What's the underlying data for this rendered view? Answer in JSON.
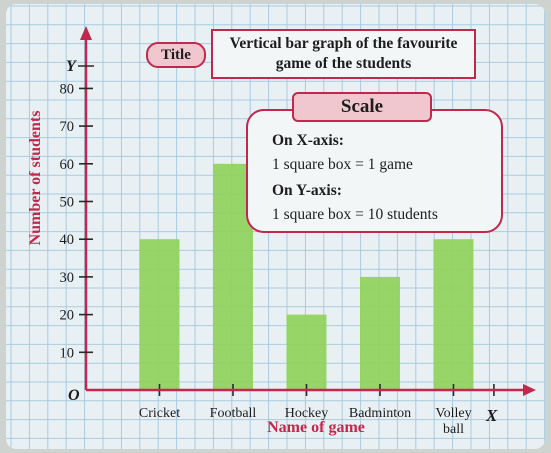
{
  "chart_data": {
    "type": "bar",
    "categories": [
      "Cricket",
      "Football",
      "Hockey",
      "Badminton",
      "Volley ball"
    ],
    "values": [
      40,
      60,
      20,
      30,
      40
    ],
    "title": "Vertical bar graph of the favourite game of the students",
    "title_tag": "Title",
    "xlabel": "Name of game",
    "ylabel": "Number of students",
    "x_axis_letter": "X",
    "y_axis_letter": "Y",
    "origin_label": "O",
    "yticks": [
      10,
      20,
      30,
      40,
      50,
      60,
      70,
      80
    ],
    "ylim": [
      0,
      80
    ],
    "grid": true,
    "bar_color": "#8fd15a",
    "axis_color": "#c2274c"
  },
  "scale": {
    "heading": "Scale",
    "x_heading": "On X-axis:",
    "x_rule": "1 square box = 1 game",
    "y_heading": "On Y-axis:",
    "y_rule": "1 square box = 10 students"
  }
}
